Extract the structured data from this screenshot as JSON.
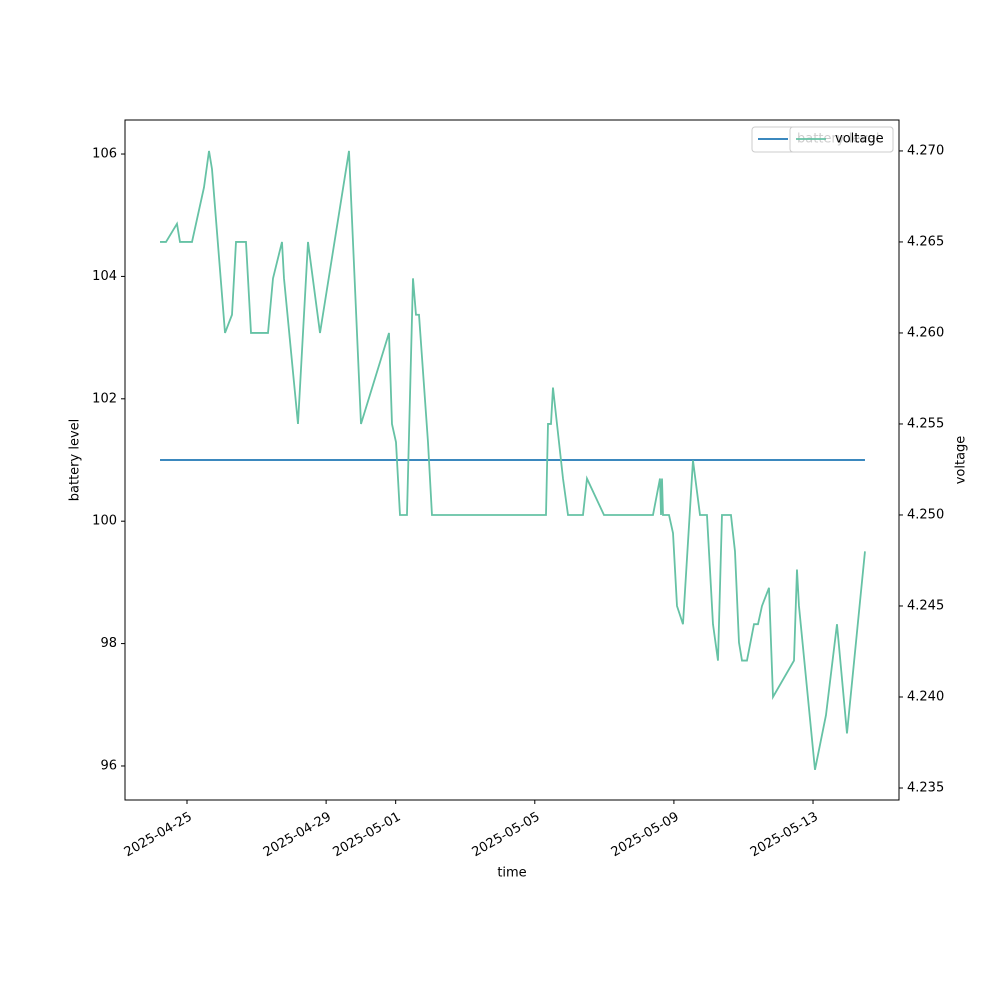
{
  "chart_data": {
    "type": "line",
    "xlabel": "time",
    "ylabel": "battery level",
    "y2label": "voltage",
    "x": [
      "2025-04-24T05:23",
      "2025-04-24T09:30",
      "2025-04-24T17:05",
      "2025-04-24T19:10",
      "2025-04-25T03:27",
      "2025-04-25T11:44",
      "2025-04-25T15:11",
      "2025-04-25T17:15",
      "2025-04-26T02:14",
      "2025-04-26T07:03",
      "2025-04-26T09:49",
      "2025-04-26T16:42",
      "2025-04-26T20:10",
      "2025-04-27T07:54",
      "2025-04-27T11:21",
      "2025-04-27T17:33",
      "2025-04-27T18:56",
      "2025-04-28T04:35",
      "2025-04-28T11:30",
      "2025-04-28T19:47",
      "2025-04-29T15:47",
      "2025-04-30T00:04",
      "2025-04-30T19:23",
      "2025-04-30T21:27",
      "2025-05-01T00:13",
      "2025-05-01T02:59",
      "2025-05-01T07:48",
      "2025-05-01T11:57",
      "2025-05-01T14:01",
      "2025-05-01T16:06",
      "2025-05-01T22:18",
      "2025-05-02T01:03",
      "2025-05-05T07:44",
      "2025-05-05T09:07",
      "2025-05-05T11:11",
      "2025-05-05T12:33",
      "2025-05-05T19:28",
      "2025-05-05T22:55",
      "2025-05-06T09:16",
      "2025-05-06T12:01",
      "2025-05-06T23:45",
      "2025-05-08T09:34",
      "2025-05-08T14:24",
      "2025-05-08T15:06",
      "2025-05-08T15:47",
      "2025-05-08T16:28",
      "2025-05-08T20:37",
      "2025-05-08T23:23",
      "2025-05-09T02:08",
      "2025-05-09T06:16",
      "2025-05-09T13:10",
      "2025-05-09T18:00",
      "2025-05-09T22:49",
      "2025-05-10T02:58",
      "2025-05-10T06:25",
      "2025-05-10T09:10",
      "2025-05-10T15:23",
      "2025-05-10T18:09",
      "2025-05-10T20:54",
      "2025-05-10T22:59",
      "2025-05-11T02:25",
      "2025-05-11T07:16",
      "2025-05-11T10:02",
      "2025-05-11T12:47",
      "2025-05-11T17:37",
      "2025-05-11T20:23",
      "2025-05-12T10:52",
      "2025-05-12T12:56",
      "2025-05-12T14:18",
      "2025-05-13T01:21",
      "2025-05-13T08:56",
      "2025-05-13T16:32",
      "2025-05-13T23:26",
      "2025-05-14T11:51"
    ],
    "series": [
      {
        "name": "battery level",
        "color": "#1f77b4",
        "axis": "y",
        "values": [
          101,
          101,
          101,
          101,
          101,
          101,
          101,
          101,
          101,
          101,
          101,
          101,
          101,
          101,
          101,
          101,
          101,
          101,
          101,
          101,
          101,
          101,
          101,
          101,
          101,
          101,
          101,
          101,
          101,
          101,
          101,
          101,
          101,
          101,
          101,
          101,
          101,
          101,
          101,
          101,
          101,
          101,
          101,
          101,
          101,
          101,
          101,
          101,
          101,
          101,
          101,
          101,
          101,
          101,
          101,
          101,
          101,
          101,
          101,
          101,
          101,
          101,
          101,
          101,
          101,
          101,
          101,
          101,
          101,
          101,
          101,
          101,
          101,
          101
        ]
      },
      {
        "name": "voltage",
        "color": "#66c2a5",
        "axis": "y2",
        "values": [
          4.265,
          4.265,
          4.266,
          4.265,
          4.265,
          4.268,
          4.27,
          4.269,
          4.26,
          4.261,
          4.265,
          4.265,
          4.26,
          4.26,
          4.263,
          4.265,
          4.263,
          4.255,
          4.265,
          4.26,
          4.27,
          4.255,
          4.26,
          4.255,
          4.254,
          4.25,
          4.25,
          4.263,
          4.261,
          4.261,
          4.254,
          4.25,
          4.25,
          4.255,
          4.255,
          4.257,
          4.252,
          4.25,
          4.25,
          4.252,
          4.25,
          4.25,
          4.252,
          4.25,
          4.252,
          4.25,
          4.25,
          4.249,
          4.245,
          4.244,
          4.253,
          4.25,
          4.25,
          4.244,
          4.242,
          4.25,
          4.25,
          4.248,
          4.243,
          4.242,
          4.242,
          4.244,
          4.244,
          4.245,
          4.246,
          4.24,
          4.242,
          4.247,
          4.245,
          4.236,
          4.239,
          4.244,
          4.238,
          4.248
        ]
      }
    ],
    "xlim": [
      "2025-04-23T05:13",
      "2025-05-15T11:20"
    ],
    "xticks": [
      "2025-04-25",
      "2025-04-29",
      "2025-05-01",
      "2025-05-05",
      "2025-05-09",
      "2025-05-13"
    ],
    "ylim": [
      95.444,
      106.556
    ],
    "yticks": [
      96,
      98,
      100,
      102,
      104,
      106
    ],
    "y2lim": [
      4.23434,
      4.2717
    ],
    "y2ticks": [
      4.235,
      {
        "value": 4.24,
        "label": "4.240"
      },
      4.245,
      {
        "value": 4.25,
        "label": "4.250"
      },
      4.255,
      {
        "value": 4.26,
        "label": "4.260"
      },
      4.265,
      {
        "value": 4.27,
        "label": "4.270"
      }
    ],
    "legend": "upper right"
  }
}
